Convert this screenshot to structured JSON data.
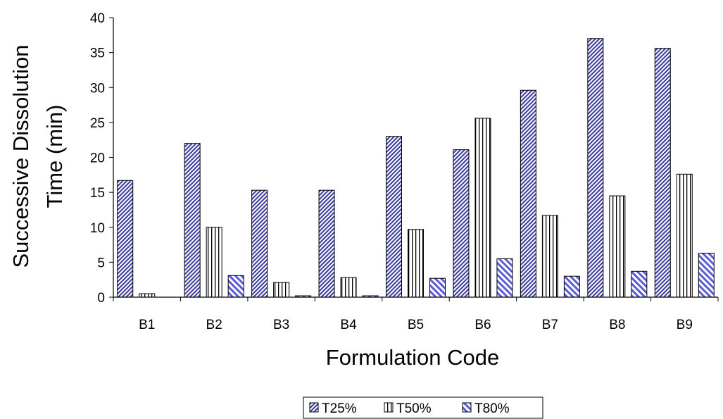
{
  "chart_data": {
    "type": "bar",
    "title": "",
    "xlabel": "Formulation Code",
    "ylabel_lines": [
      "Successive Dissolution",
      "Time (min)"
    ],
    "ylim": [
      0,
      40
    ],
    "yticks": [
      0,
      5,
      10,
      15,
      20,
      25,
      30,
      35,
      40
    ],
    "grid": false,
    "legend_position": "bottom",
    "categories": [
      "B1",
      "B2",
      "B3",
      "B4",
      "B5",
      "B6",
      "B7",
      "B8",
      "B9"
    ],
    "series": [
      {
        "name": "T25%",
        "pattern": "diagonal-hatch",
        "color": "#3b3b9e",
        "values": [
          16.7,
          22.0,
          15.3,
          15.3,
          23.0,
          21.1,
          29.6,
          37.0,
          35.6
        ]
      },
      {
        "name": "T50%",
        "pattern": "vertical-stripes",
        "color": "#000000",
        "values": [
          0.5,
          10.0,
          2.1,
          2.8,
          9.7,
          25.6,
          11.7,
          14.5,
          17.6
        ]
      },
      {
        "name": "T80%",
        "pattern": "light-diagonal",
        "color": "#5b5bd6",
        "values": [
          0.0,
          3.1,
          0.2,
          0.2,
          2.7,
          5.5,
          3.0,
          3.7,
          6.3
        ]
      }
    ]
  }
}
